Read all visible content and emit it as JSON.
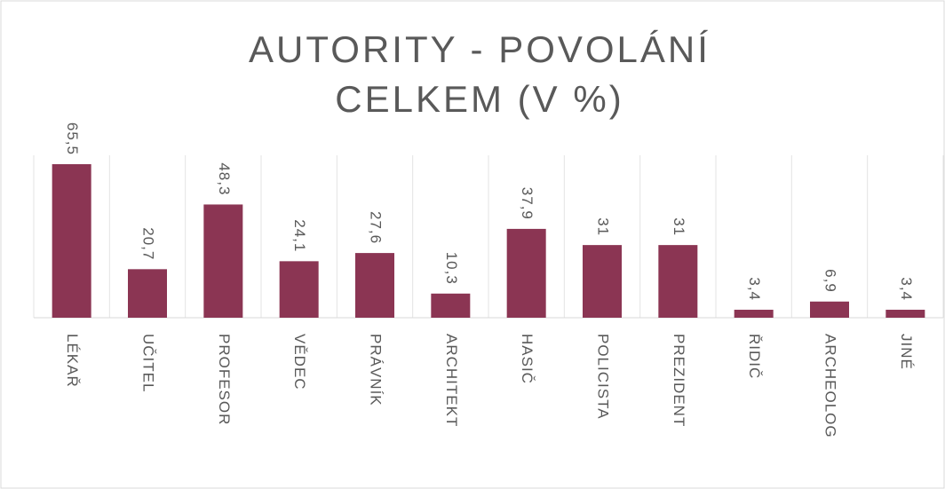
{
  "chart_data": {
    "type": "bar",
    "title": "AUTORITY - POVOLÁNÍ CELKEM (V %)",
    "categories": [
      "LÉKAŘ",
      "UČITEL",
      "PROFESOR",
      "VĚDEC",
      "PRÁVNÍK",
      "ARCHITEKT",
      "HASIČ",
      "POLICISTA",
      "PREZIDENT",
      "ŘIDIČ",
      "ARCHEOLOG",
      "JINÉ"
    ],
    "values": [
      65.5,
      20.7,
      48.3,
      24.1,
      27.6,
      10.3,
      37.9,
      31,
      31,
      3.4,
      6.9,
      3.4
    ],
    "value_labels": [
      "65,5",
      "20,7",
      "48,3",
      "24,1",
      "27,6",
      "10,3",
      "37,9",
      "31",
      "31",
      "3,4",
      "6,9",
      "3,4"
    ],
    "color": "#8b3553"
  }
}
